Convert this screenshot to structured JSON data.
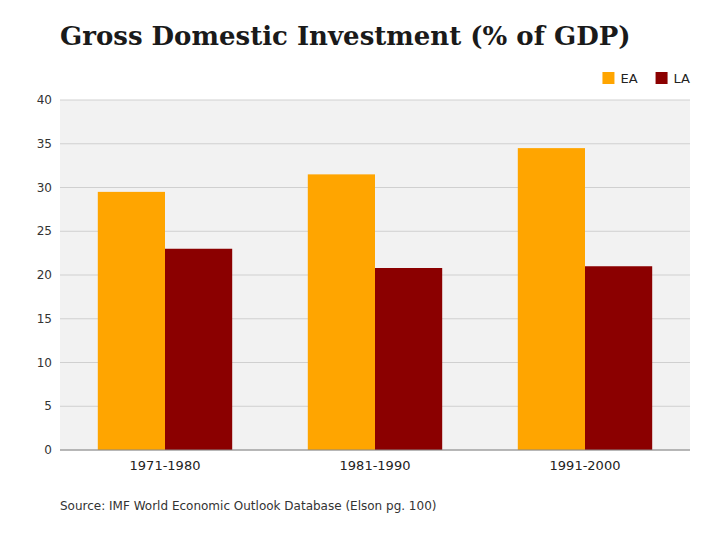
{
  "chart_data": {
    "type": "bar",
    "title": "Gross Domestic Investment (% of GDP)",
    "categories": [
      "1971-1980",
      "1981-1990",
      "1991-2000"
    ],
    "series": [
      {
        "name": "EA",
        "color": "#FFA500",
        "values": [
          29.5,
          31.5,
          34.5
        ]
      },
      {
        "name": "LA",
        "color": "#8B0000",
        "values": [
          23.0,
          20.8,
          21.0
        ]
      }
    ],
    "ylim": [
      0,
      40
    ],
    "yticks": [
      0,
      5,
      10,
      15,
      20,
      25,
      30,
      35,
      40
    ],
    "grid": true,
    "legend": "upper right",
    "annotations": [
      "Source: IMF World Economic Outlook Database (Elson pg. 100)"
    ]
  }
}
